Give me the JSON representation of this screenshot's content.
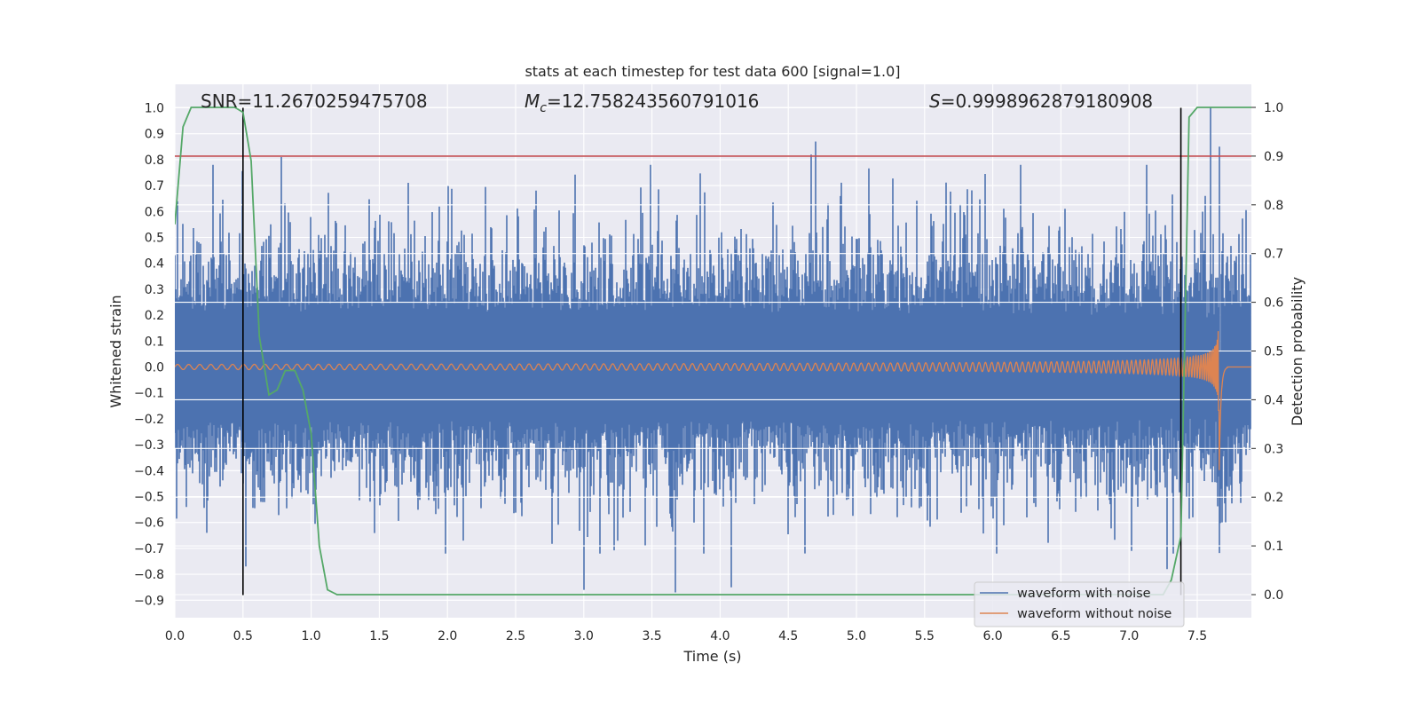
{
  "chart_data": {
    "type": "line",
    "title": "stats at each timestep for test data 600 [signal=1.0]",
    "xlabel": "Time (s)",
    "ylabel": "Whitened strain",
    "y2label": "Detection probability",
    "xlim": [
      0.0,
      8.0
    ],
    "ylim": [
      -0.97,
      1.08
    ],
    "y2lim": [
      -0.045,
      1.055
    ],
    "xticks": [
      "0.0",
      "0.5",
      "1.0",
      "1.5",
      "2.0",
      "2.5",
      "3.0",
      "3.5",
      "4.0",
      "4.5",
      "5.0",
      "5.5",
      "6.0",
      "6.5",
      "7.0",
      "7.5"
    ],
    "yticks": [
      "1.0",
      "0.9",
      "0.8",
      "0.7",
      "0.6",
      "0.5",
      "0.4",
      "0.3",
      "0.2",
      "0.1",
      "0.0",
      "−0.1",
      "−0.2",
      "−0.3",
      "−0.4",
      "−0.5",
      "−0.6",
      "−0.7",
      "−0.8",
      "−0.9"
    ],
    "y2ticks": [
      "1.0",
      "0.9",
      "0.8",
      "0.7",
      "0.6",
      "0.5",
      "0.4",
      "0.3",
      "0.2",
      "0.1",
      "0.0"
    ],
    "annotations": {
      "snr": "SNR=11.2670259475708",
      "mc_symbol": "M",
      "mc_sub": "c",
      "mc_value": "=12.758243560791016",
      "s_symbol": "S",
      "s_value": "=0.9998962879180908"
    },
    "threshold": {
      "axis": "right",
      "value": 0.9,
      "color": "#c44e52"
    },
    "vertical_markers": {
      "x": [
        0.5,
        7.38
      ],
      "y_range": [
        -0.88,
        1.0
      ],
      "color": "#000000"
    },
    "series": [
      {
        "name": "waveform with noise",
        "color": "#4c72b0",
        "axis": "left",
        "description_points": {
          "peaks_up": [
            [
              0.78,
              0.81
            ],
            [
              4.67,
              0.82
            ],
            [
              4.7,
              0.87
            ],
            [
              7.6,
              1.0
            ],
            [
              7.66,
              0.85
            ]
          ],
          "peaks_down": [
            [
              0.52,
              -0.77
            ],
            [
              3.0,
              -0.86
            ],
            [
              3.67,
              -0.87
            ],
            [
              4.08,
              -0.85
            ],
            [
              7.28,
              -0.78
            ]
          ]
        }
      },
      {
        "name": "waveform without noise",
        "color": "#dd8452",
        "axis": "left",
        "description_points": {
          "merger_time": 7.66,
          "peak_amplitude": 0.47,
          "start_amplitude": 0.01
        }
      },
      {
        "name": "",
        "color": "#55a868",
        "axis": "right",
        "x": [
          0.0,
          0.06,
          0.12,
          0.19,
          0.25,
          0.31,
          0.38,
          0.44,
          0.5,
          0.56,
          0.62,
          0.69,
          0.75,
          0.81,
          0.88,
          0.94,
          1.0,
          1.06,
          1.12,
          1.19,
          1.25,
          7.25,
          7.31,
          7.38,
          7.44,
          7.5,
          7.56,
          7.62,
          7.69,
          7.75,
          7.81,
          7.88,
          7.94,
          8.0
        ],
        "values": [
          0.76,
          0.96,
          1.0,
          1.0,
          1.0,
          1.0,
          1.0,
          1.0,
          0.99,
          0.89,
          0.53,
          0.41,
          0.42,
          0.46,
          0.46,
          0.42,
          0.33,
          0.1,
          0.01,
          0.0,
          0.0,
          0.0,
          0.03,
          0.12,
          0.98,
          1.0,
          1.0,
          1.0,
          1.0,
          1.0,
          1.0,
          1.0,
          1.0,
          1.0
        ]
      }
    ],
    "legend": {
      "placement": "lower-right",
      "entries": [
        "waveform with noise",
        "waveform without noise"
      ]
    },
    "grid": true
  }
}
